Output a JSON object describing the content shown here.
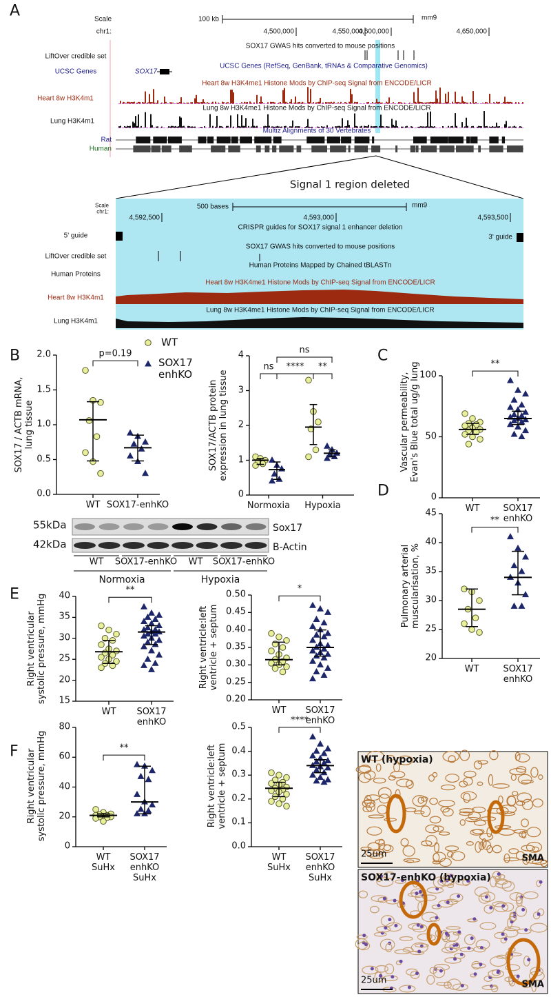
{
  "panel_labels": [
    "A",
    "B",
    "C",
    "D",
    "E",
    "F"
  ],
  "browser": {
    "scale": "Scale",
    "scale_bar": "100 kb",
    "assembly": "mm9",
    "chrom": "chr1:",
    "positions": [
      "4,500,000",
      "4,550,000",
      "4,600,000",
      "4,650,000"
    ],
    "liftover_title": "SOX17 GWAS hits converted to mouse positions",
    "liftover_label": "LiftOver credible set",
    "genes_title": "UCSC Genes (RefSeq, GenBank, tRNAs & Comparative Genomics)",
    "genes_label": "UCSC Genes",
    "gene": "SOX17",
    "heart_title": "Heart 8w H3K4me1 Histone Mods by ChIP-seq Signal from ENCODE/LICR",
    "heart_label": "Heart 8w H3K4m1",
    "lung_title": "Lung 8w H3K4me1 Histone Mods by ChIP-seq Signal from ENCODE/LICR",
    "lung_label": "Lung H3K4m1",
    "multiz_title": "Multiz Alignments of 30 Vertebrates",
    "rat": "Rat",
    "human": "Human",
    "zoom_title": "Signal 1 region deleted"
  },
  "zoom": {
    "scale": "Scale",
    "chrom": "chr1:",
    "scale_bar": "500 bases",
    "assembly": "mm9",
    "positions": [
      "4,592,500",
      "4,593,000",
      "4,593,500"
    ],
    "crispr_title": "CRISPR guides for SOX17 signal 1 enhancer deletion",
    "guide5": "5' guide",
    "guide3": "3' guide",
    "liftover_title": "SOX17 GWAS hits converted to mouse positions",
    "liftover_label": "LiftOver credible set",
    "proteins_title": "Human Proteins Mapped by Chained tBLASTn",
    "proteins_label": "Human Proteins",
    "heart_title": "Heart 8w H3K4me1 Histone Mods by ChIP-seq Signal from ENCODE/LICR",
    "heart_label": "Heart 8w H3K4m1",
    "lung_title": "Lung 8w H3K4me1 Histone Mods by ChIP-seq Signal from ENCODE/LICR",
    "lung_label": "Lung H3K4m1"
  },
  "blot": {
    "markers": [
      "55kDa",
      "42kDa"
    ],
    "proteins": [
      "Sox17",
      "B-Actin"
    ],
    "genotypes": [
      "WT",
      "SOX17-enhKO",
      "WT",
      "SOX17-enhKO"
    ],
    "conditions": [
      "Normoxia",
      "Hypoxia"
    ]
  },
  "micrographs": [
    {
      "title": "WT (hypoxia)",
      "scale": "25um",
      "stain": "SMA"
    },
    {
      "title": "SOX17-enhKO (hypoxia)",
      "scale": "25um",
      "stain": "SMA"
    }
  ],
  "chart_data": [
    {
      "type": "scatter",
      "y_label": "SOX17 / ACTB mRNA,\nlung tissue",
      "series": [
        {
          "name": "WT",
          "color": "#e8f09c",
          "marker": "circle"
        },
        {
          "name": "SOX17\nenhKO",
          "color": "#1c2668",
          "marker": "triangle"
        }
      ],
      "categories": [
        "WT",
        "SOX17-enhKO"
      ],
      "ylim": [
        0,
        2
      ],
      "yticks": [
        {
          "value": 0,
          "label": "0.0"
        },
        0.5,
        {
          "value": 1,
          "label": "1.0"
        },
        1.5,
        {
          "value": 2,
          "label": "2.0"
        }
      ],
      "groups": [
        {
          "points": [
            1.78,
            1.35,
            1.32,
            1.06,
            0.83,
            0.6,
            0.47,
            0.3
          ],
          "median": 1.07,
          "whisker": [
            0.48,
            1.33
          ]
        },
        {
          "points": [
            0.88,
            0.83,
            0.75,
            0.72,
            0.65,
            0.55,
            0.47,
            0.3
          ],
          "median": 0.67,
          "whisker": [
            0.48,
            0.85
          ]
        }
      ],
      "brackets": [
        {
          "label": "p=0.19",
          "groups": [
            0,
            1
          ]
        }
      ]
    },
    {
      "type": "scatter",
      "y_label": "SOX17/ACTB protein\nexpression in lung tissue",
      "categories": [
        "Normoxia",
        "Hypoxia"
      ],
      "ylim": [
        0,
        4
      ],
      "yticks": [
        0,
        1,
        2,
        3,
        4
      ],
      "groups": [
        {
          "points": [
            1.1,
            1.05,
            1.0,
            0.95,
            0.9,
            0.85
          ],
          "median": 1.0,
          "whisker": [
            0.88,
            1.05
          ]
        },
        {
          "points": [
            1.0,
            0.85,
            0.75,
            0.6,
            0.45,
            0.4
          ],
          "median": 0.73,
          "whisker": [
            0.45,
            0.95
          ]
        },
        {
          "points": [
            3.3,
            2.4,
            2.1,
            1.9,
            1.3,
            1.1
          ],
          "median": 1.95,
          "whisker": [
            1.45,
            2.6
          ]
        },
        {
          "points": [
            1.4,
            1.3,
            1.2,
            1.15,
            1.1,
            1.05
          ],
          "median": 1.2,
          "whisker": [
            1.1,
            1.3
          ]
        }
      ],
      "brackets": [
        {
          "label": "ns",
          "groups": [
            0,
            1
          ]
        },
        {
          "label": "****",
          "groups": [
            1,
            2
          ]
        },
        {
          "label": "**",
          "groups": [
            2,
            3
          ]
        },
        {
          "label": "ns",
          "groups": [
            1,
            3
          ]
        }
      ]
    },
    {
      "type": "scatter",
      "y_label": "Vascular permeability,\nEvan's Blue total ug/g lung",
      "categories": [
        "WT",
        "SOX17\nenhKO"
      ],
      "ylim": [
        0,
        100
      ],
      "yticks": [
        0,
        50,
        100
      ],
      "groups": [
        {
          "points": [
            69,
            65,
            62,
            61,
            60,
            59,
            57,
            56,
            55,
            54,
            52,
            50,
            48,
            44
          ],
          "median": 56,
          "whisker": [
            52,
            61
          ]
        },
        {
          "points": [
            96,
            88,
            85,
            80,
            76,
            74,
            72,
            70,
            68,
            67,
            66,
            65,
            64,
            63,
            62,
            60,
            58,
            55,
            52,
            50
          ],
          "median": 65,
          "whisker": [
            60,
            71
          ]
        }
      ],
      "brackets": [
        {
          "label": "**",
          "groups": [
            0,
            1
          ]
        }
      ]
    },
    {
      "type": "scatter",
      "y_label": "Pulmonary arterial\nmuscularisation, %",
      "categories": [
        "WT",
        "SOX17\nenhKO"
      ],
      "ylim": [
        20,
        45
      ],
      "yticks": [
        20,
        25,
        30,
        35,
        40,
        45
      ],
      "groups": [
        {
          "points": [
            32,
            31.5,
            30,
            28.5,
            27,
            26,
            25,
            24.5
          ],
          "median": 28.5,
          "whisker": [
            25.5,
            32
          ]
        },
        {
          "points": [
            41,
            39,
            37.5,
            36,
            35,
            34,
            33,
            31,
            29,
            29
          ],
          "median": 34,
          "whisker": [
            31,
            38.5
          ]
        }
      ],
      "brackets": [
        {
          "label": "**",
          "groups": [
            0,
            1
          ]
        }
      ]
    },
    {
      "type": "scatter",
      "y_label": "Right ventricular\nsystolic pressure, mmHg",
      "categories": [
        "WT",
        "SOX17\nenhKO"
      ],
      "ylim": [
        15,
        40
      ],
      "yticks": [
        15,
        20,
        25,
        30,
        35,
        40
      ],
      "groups": [
        {
          "points": [
            33,
            32,
            31,
            30,
            29.5,
            28.5,
            27.5,
            27,
            26.5,
            26,
            25.5,
            25,
            24.5,
            24,
            23.5,
            23
          ],
          "median": 26.8,
          "whisker": [
            24,
            29.5
          ]
        },
        {
          "points": [
            37.5,
            36,
            35.5,
            35,
            34.5,
            34,
            33.5,
            33,
            32.5,
            32,
            32,
            31.5,
            31.5,
            31,
            31,
            30.5,
            30,
            29.5,
            29,
            28.5,
            28,
            27,
            26,
            25,
            24,
            23.5,
            22.5
          ],
          "median": 31.5,
          "whisker": [
            28.5,
            33
          ]
        }
      ],
      "brackets": [
        {
          "label": "**",
          "groups": [
            0,
            1
          ]
        }
      ]
    },
    {
      "type": "scatter",
      "y_label": "Right ventricle:left\nventricle + septum",
      "categories": [
        "WT",
        "SOX17\nenhKO"
      ],
      "ylim": [
        0.2,
        0.5
      ],
      "yticks": [
        {
          "value": 0.2,
          "label": "0.20"
        },
        {
          "value": 0.25,
          "label": "0.25"
        },
        {
          "value": 0.3,
          "label": "0.30"
        },
        {
          "value": 0.35,
          "label": "0.35"
        },
        {
          "value": 0.4,
          "label": "0.40"
        },
        {
          "value": 0.45,
          "label": "0.45"
        },
        {
          "value": 0.5,
          "label": "0.50"
        }
      ],
      "groups": [
        {
          "points": [
            0.39,
            0.38,
            0.37,
            0.36,
            0.35,
            0.34,
            0.33,
            0.32,
            0.315,
            0.31,
            0.305,
            0.3,
            0.295,
            0.29,
            0.28
          ],
          "median": 0.315,
          "whisker": [
            0.3,
            0.365
          ]
        },
        {
          "points": [
            0.47,
            0.46,
            0.45,
            0.43,
            0.42,
            0.41,
            0.4,
            0.39,
            0.385,
            0.38,
            0.37,
            0.36,
            0.355,
            0.35,
            0.345,
            0.34,
            0.335,
            0.33,
            0.325,
            0.32,
            0.31,
            0.3,
            0.29,
            0.28,
            0.27,
            0.26
          ],
          "median": 0.35,
          "whisker": [
            0.325,
            0.4
          ]
        }
      ],
      "brackets": [
        {
          "label": "*",
          "groups": [
            0,
            1
          ]
        }
      ]
    },
    {
      "type": "scatter",
      "y_label": "Right ventricular\nsystolic pressure, mmHg",
      "categories": [
        "WT\nSuHx",
        "SOX17\nenhKO\nSuHx"
      ],
      "ylim": [
        0,
        80
      ],
      "yticks": [
        0,
        20,
        40,
        60,
        80
      ],
      "groups": [
        {
          "points": [
            25,
            23,
            22,
            21.5,
            21,
            21,
            20.5,
            20,
            20,
            19.5,
            19,
            17
          ],
          "median": 21,
          "whisker": [
            20,
            22
          ]
        },
        {
          "points": [
            55,
            54,
            51,
            47,
            45,
            35,
            30,
            28,
            25,
            24,
            22,
            22
          ],
          "median": 30,
          "whisker": [
            22,
            54
          ]
        }
      ],
      "brackets": [
        {
          "label": "**",
          "groups": [
            0,
            1
          ]
        }
      ]
    },
    {
      "type": "scatter",
      "y_label": "Right ventricle:left\nventricle + septum",
      "categories": [
        "WT\nSuHx",
        "SOX17\nenhKO\nSuHx"
      ],
      "ylim": [
        0,
        0.5
      ],
      "yticks": [
        {
          "value": 0,
          "label": "0.0"
        },
        0.1,
        0.2,
        0.3,
        0.4,
        0.5
      ],
      "groups": [
        {
          "points": [
            0.31,
            0.3,
            0.29,
            0.28,
            0.27,
            0.265,
            0.26,
            0.25,
            0.245,
            0.24,
            0.235,
            0.23,
            0.22,
            0.21,
            0.2,
            0.19,
            0.18,
            0.17
          ],
          "median": 0.245,
          "whisker": [
            0.21,
            0.27
          ]
        },
        {
          "points": [
            0.46,
            0.43,
            0.41,
            0.4,
            0.39,
            0.38,
            0.37,
            0.36,
            0.355,
            0.35,
            0.34,
            0.335,
            0.33,
            0.32,
            0.31,
            0.3,
            0.29,
            0.28,
            0.275,
            0.27
          ],
          "median": 0.34,
          "whisker": [
            0.31,
            0.365
          ]
        }
      ],
      "brackets": [
        {
          "label": "****",
          "groups": [
            0,
            1
          ]
        }
      ]
    }
  ]
}
